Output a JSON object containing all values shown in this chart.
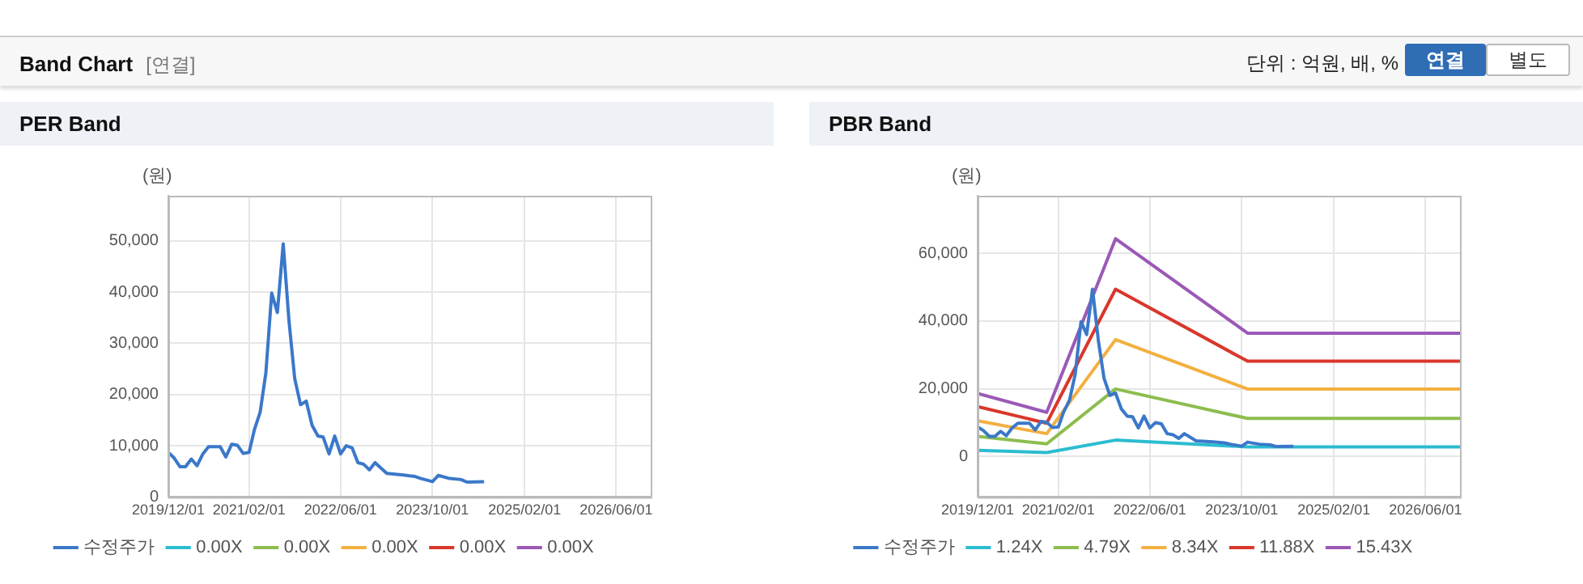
{
  "chart_data": [
    {
      "type": "other",
      "title": "Band Chart",
      "annotations": [
        "[연결]",
        "단위 : 억원, 배, %",
        "연결",
        "별도"
      ]
    },
    {
      "type": "line",
      "title": "PER Band",
      "ylabel": "(원)",
      "xlim": [
        "2019-12-01",
        "2026-12-01"
      ],
      "xticks": [
        {
          "value": "2019-12-01",
          "label": "2019/12/01"
        },
        {
          "value": "2021-02-01",
          "label": "2021/02/01"
        },
        {
          "value": "2022-06-01",
          "label": "2022/06/01"
        },
        {
          "value": "2023-10-01",
          "label": "2023/10/01"
        },
        {
          "value": "2025-02-01",
          "label": "2025/02/01"
        },
        {
          "value": "2026-06-01",
          "label": "2026/06/01"
        }
      ],
      "ylim": [
        0,
        58800
      ],
      "yticks": [
        {
          "value": 0,
          "label": "0"
        },
        {
          "value": 10000,
          "label": "10,000"
        },
        {
          "value": 20000,
          "label": "20,000"
        },
        {
          "value": 30000,
          "label": "30,000"
        },
        {
          "value": 40000,
          "label": "40,000"
        },
        {
          "value": 50000,
          "label": "50,000"
        }
      ],
      "grid": true,
      "legend": "bottom",
      "marker": "none",
      "series": [
        {
          "name": "수정주가",
          "color": "#3a78c9",
          "x": [
            "2019-12",
            "2020-01",
            "2020-02",
            "2020-03",
            "2020-04",
            "2020-05",
            "2020-06",
            "2020-07",
            "2020-09",
            "2020-10",
            "2020-11",
            "2020-12",
            "2021-01",
            "2021-02",
            "2021-03",
            "2021-04",
            "2021-05",
            "2021-06",
            "2021-07",
            "2021-08",
            "2021-09",
            "2021-10",
            "2021-11",
            "2021-12",
            "2022-01",
            "2022-02",
            "2022-03",
            "2022-04",
            "2022-05",
            "2022-06",
            "2022-07",
            "2022-08",
            "2022-09",
            "2022-10",
            "2022-11",
            "2022-12",
            "2023-02",
            "2023-05",
            "2023-07",
            "2023-08",
            "2023-10",
            "2023-11",
            "2024-01",
            "2024-03",
            "2024-04",
            "2024-07"
          ],
          "values": [
            8700,
            7600,
            5900,
            5900,
            7400,
            6100,
            8400,
            9800,
            9800,
            7800,
            10300,
            10100,
            8500,
            8700,
            13100,
            16600,
            24200,
            39800,
            36000,
            49400,
            34200,
            23100,
            18000,
            18700,
            14000,
            11900,
            11700,
            8400,
            11900,
            8400,
            10000,
            9600,
            6700,
            6400,
            5300,
            6700,
            4600,
            4300,
            4000,
            3600,
            3000,
            4200,
            3600,
            3400,
            2900,
            3000
          ]
        },
        {
          "name": "0.00X",
          "color": "#2bbcd0"
        },
        {
          "name": "0.00X",
          "color": "#8cbd4e"
        },
        {
          "name": "0.00X",
          "color": "#f2b040"
        },
        {
          "name": "0.00X",
          "color": "#d9372b"
        },
        {
          "name": "0.00X",
          "color": "#9b59b6"
        }
      ]
    },
    {
      "type": "line",
      "title": "PBR Band",
      "ylabel": "(원)",
      "xlim": [
        "2019-12-01",
        "2026-12-01"
      ],
      "xticks": [
        {
          "value": "2019-12-01",
          "label": "2019/12/01"
        },
        {
          "value": "2021-02-01",
          "label": "2021/02/01"
        },
        {
          "value": "2022-06-01",
          "label": "2022/06/01"
        },
        {
          "value": "2023-10-01",
          "label": "2023/10/01"
        },
        {
          "value": "2025-02-01",
          "label": "2025/02/01"
        },
        {
          "value": "2026-06-01",
          "label": "2026/06/01"
        }
      ],
      "ylim": [
        -12000,
        77000
      ],
      "yticks": [
        {
          "value": 0,
          "label": "0"
        },
        {
          "value": 20000,
          "label": "20,000"
        },
        {
          "value": 40000,
          "label": "40,000"
        },
        {
          "value": 60000,
          "label": "60,000"
        }
      ],
      "grid": true,
      "legend": "bottom",
      "marker": "none",
      "series": [
        {
          "name": "수정주가",
          "color": "#3a78c9",
          "x": [
            "2019-12",
            "2020-01",
            "2020-02",
            "2020-03",
            "2020-04",
            "2020-05",
            "2020-06",
            "2020-07",
            "2020-09",
            "2020-10",
            "2020-11",
            "2020-12",
            "2021-01",
            "2021-02",
            "2021-03",
            "2021-04",
            "2021-05",
            "2021-06",
            "2021-07",
            "2021-08",
            "2021-09",
            "2021-10",
            "2021-11",
            "2021-12",
            "2022-01",
            "2022-02",
            "2022-03",
            "2022-04",
            "2022-05",
            "2022-06",
            "2022-07",
            "2022-08",
            "2022-09",
            "2022-10",
            "2022-11",
            "2022-12",
            "2023-02",
            "2023-05",
            "2023-07",
            "2023-08",
            "2023-10",
            "2023-11",
            "2024-01",
            "2024-03",
            "2024-04",
            "2024-07"
          ],
          "values": [
            8700,
            7600,
            5900,
            5900,
            7400,
            6100,
            8400,
            9800,
            9800,
            7800,
            10300,
            10100,
            8500,
            8700,
            13100,
            16600,
            24200,
            39800,
            36000,
            49400,
            34200,
            23100,
            18000,
            18700,
            14000,
            11900,
            11700,
            8400,
            11900,
            8400,
            10000,
            9600,
            6700,
            6400,
            5300,
            6700,
            4600,
            4300,
            4000,
            3600,
            3000,
            4200,
            3600,
            3400,
            2900,
            3000
          ]
        },
        {
          "name": "1.24X",
          "color": "#2bbcd0",
          "x": [
            "2019-12",
            "2020-12",
            "2021-12",
            "2023-11",
            "2026-12"
          ],
          "values": [
            1800,
            1100,
            4800,
            2800,
            2800
          ]
        },
        {
          "name": "4.79X",
          "color": "#8cbd4e",
          "x": [
            "2019-12",
            "2020-12",
            "2021-12",
            "2023-11",
            "2026-12"
          ],
          "values": [
            5900,
            3700,
            19900,
            11200,
            11200
          ]
        },
        {
          "name": "8.34X",
          "color": "#f2b040",
          "x": [
            "2019-12",
            "2020-12",
            "2021-12",
            "2023-11",
            "2026-12"
          ],
          "values": [
            10500,
            6700,
            34500,
            19900,
            19900
          ]
        },
        {
          "name": "11.88X",
          "color": "#d9372b",
          "x": [
            "2019-12",
            "2020-12",
            "2021-12",
            "2023-11",
            "2026-12"
          ],
          "values": [
            14700,
            9800,
            49400,
            28100,
            28100
          ]
        },
        {
          "name": "15.43X",
          "color": "#9b59b6",
          "x": [
            "2019-12",
            "2020-12",
            "2021-12",
            "2023-11",
            "2026-12"
          ],
          "values": [
            18600,
            13000,
            64300,
            36400,
            36400
          ]
        }
      ]
    }
  ]
}
